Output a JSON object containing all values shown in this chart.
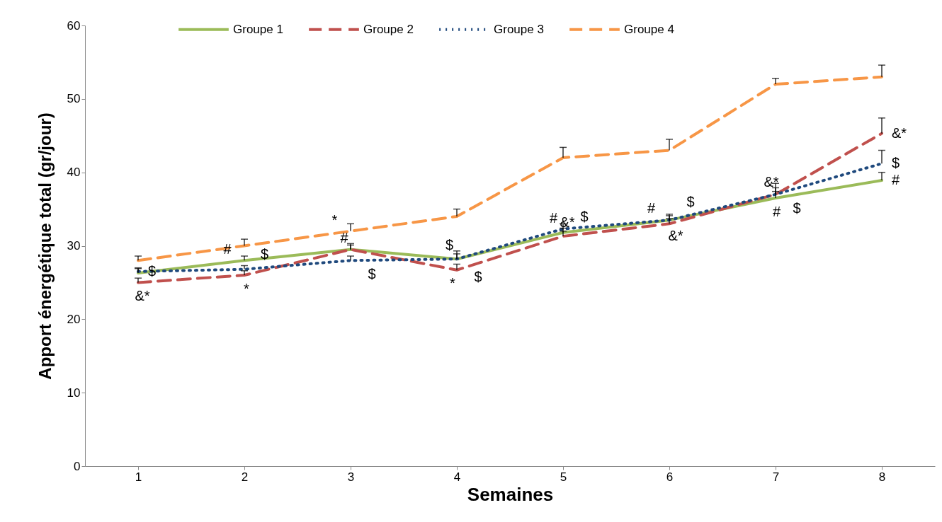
{
  "chart_data": {
    "type": "line",
    "xlabel": "Semaines",
    "ylabel": "Apport  énergétique  total (gr/jour)",
    "x": [
      1,
      2,
      3,
      4,
      5,
      6,
      7,
      8
    ],
    "xlim": [
      0.5,
      8.5
    ],
    "xticks": [
      1,
      2,
      3,
      4,
      5,
      6,
      7,
      8
    ],
    "ylim": [
      0,
      60
    ],
    "yticks": [
      0,
      10,
      20,
      30,
      40,
      50,
      60
    ],
    "legend": "top",
    "marker": "none",
    "series": [
      {
        "name": "Groupe 1",
        "color": "#9bbb59",
        "line_style": "solid",
        "values": [
          26.3,
          28,
          29.5,
          28.2,
          31.8,
          33.5,
          36.5,
          38.9
        ],
        "errors": [
          [
            26.3,
            26.9
          ],
          [
            28,
            28.6
          ],
          [
            29.5,
            30.3
          ],
          [
            28.2,
            28.9
          ],
          [
            31.8,
            32.4
          ],
          [
            33.5,
            34.1
          ],
          [
            36.5,
            37.4
          ],
          [
            38.9,
            40
          ]
        ]
      },
      {
        "name": "Groupe 2",
        "color": "#c0504d",
        "line_style": "dashed",
        "values": [
          25,
          26,
          29.5,
          26.7,
          31.3,
          33,
          37,
          45.3
        ],
        "errors": [
          [
            25,
            25.6
          ],
          [
            26,
            26.6
          ],
          [
            29.5,
            30.1
          ],
          [
            26.7,
            27.5
          ],
          [
            31.3,
            32
          ],
          [
            33,
            33.7
          ],
          [
            37,
            37.9
          ],
          [
            45.3,
            47.4
          ]
        ]
      },
      {
        "name": "Groupe 3",
        "color": "#1f497d",
        "line_style": "dotted",
        "values": [
          26.5,
          26.8,
          28,
          28.2,
          32.3,
          33.5,
          37,
          41.2
        ],
        "errors": [
          [
            26.5,
            27
          ],
          [
            26.8,
            27.3
          ],
          [
            28,
            28.6
          ],
          [
            28.2,
            29.3
          ],
          [
            32.3,
            33
          ],
          [
            33.5,
            34.3
          ],
          [
            37,
            38.5
          ],
          [
            41.2,
            43
          ]
        ]
      },
      {
        "name": "Groupe 4",
        "color": "#f79646",
        "line_style": "dashed",
        "values": [
          28,
          30,
          32,
          34,
          42,
          43,
          52,
          53
        ],
        "errors": [
          [
            28,
            28.6
          ],
          [
            30,
            30.9
          ],
          [
            32,
            33
          ],
          [
            34,
            35
          ],
          [
            42,
            43.4
          ],
          [
            43,
            44.5
          ],
          [
            52,
            52.8
          ],
          [
            53,
            54.6
          ]
        ]
      }
    ],
    "annotations": [
      {
        "text": "$",
        "x": 1,
        "y": 26.5
      },
      {
        "text": "&*",
        "x": 1.04,
        "y": 25.04
      },
      {
        "text": "#",
        "x": 1.84,
        "y": 27.73
      },
      {
        "text": "*",
        "x": 2.02,
        "y": 26.01
      },
      {
        "text": "$",
        "x": 2.19,
        "y": 27.03
      },
      {
        "text": "*",
        "x": 2.85,
        "y": 31.7
      },
      {
        "text": "#",
        "x": 2.94,
        "y": 29.3
      },
      {
        "text": "$",
        "x": 3.2,
        "y": 28.04
      },
      {
        "text": "$",
        "x": 3.93,
        "y": 28.27
      },
      {
        "text": "*",
        "x": 3.96,
        "y": 26.8
      },
      {
        "text": "$",
        "x": 4.2,
        "y": 27.6
      },
      {
        "text": "#",
        "x": 4.91,
        "y": 31.93
      },
      {
        "text": "$",
        "x": 5.2,
        "y": 32.14
      },
      {
        "text": "&*",
        "x": 5.04,
        "y": 31.37
      },
      {
        "text": "#",
        "x": 5.83,
        "y": 33.28
      },
      {
        "text": "$",
        "x": 6.2,
        "y": 34.2
      },
      {
        "text": "&*",
        "x": 6.06,
        "y": 33.24
      },
      {
        "text": "&*",
        "x": 6.96,
        "y": 36.84
      },
      {
        "text": "$",
        "x": 7.2,
        "y": 36.98
      },
      {
        "text": "#",
        "x": 7.01,
        "y": 36.52
      },
      {
        "text": "&*",
        "x": 8,
        "y": 45.3
      },
      {
        "text": "$",
        "x": 8,
        "y": 41.2
      },
      {
        "text": "#",
        "x": 8,
        "y": 38.9
      }
    ]
  }
}
